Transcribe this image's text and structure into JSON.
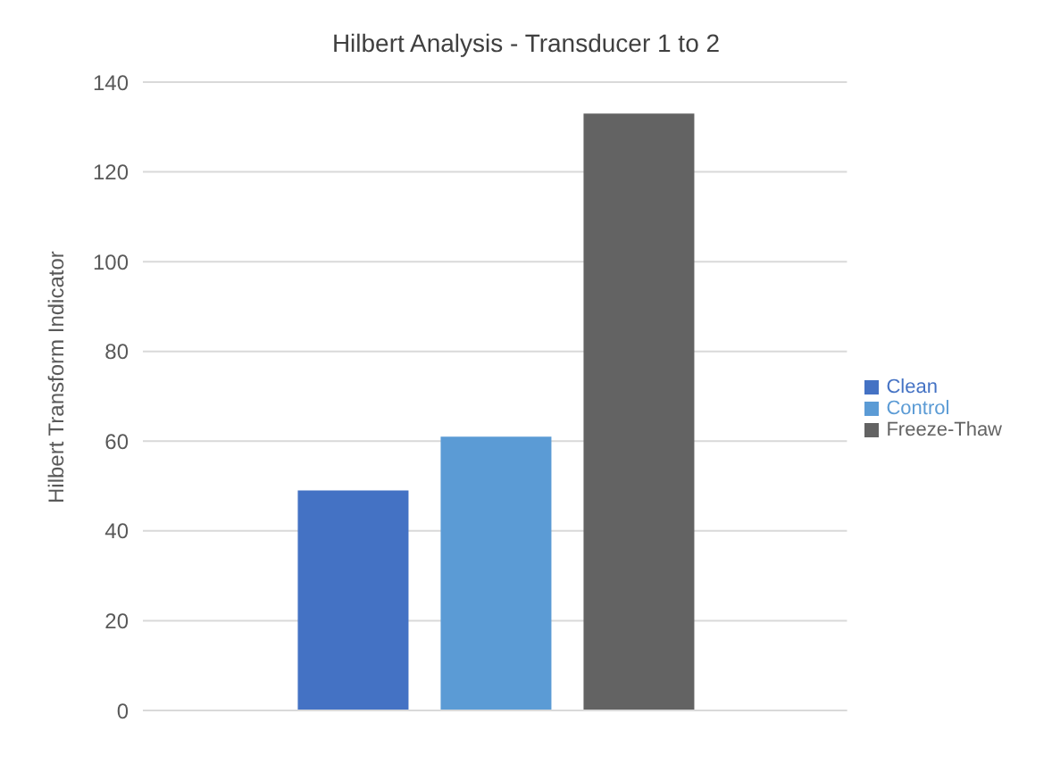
{
  "chart_data": {
    "type": "bar",
    "title": "Hilbert Analysis - Transducer 1 to 2",
    "ylabel": "Hilbert Transform Indicator",
    "categories": [
      null
    ],
    "series": [
      {
        "name": "Clean",
        "color": "#4472c4",
        "values": [
          49
        ]
      },
      {
        "name": "Control",
        "color": "#5b9bd5",
        "values": [
          61
        ]
      },
      {
        "name": "Freeze-Thaw",
        "color": "#636363",
        "values": [
          133
        ]
      }
    ],
    "ylim": [
      0,
      140
    ],
    "yticks": [
      0,
      20,
      40,
      60,
      80,
      100,
      120,
      140
    ],
    "grid": "y",
    "legend": "right"
  }
}
